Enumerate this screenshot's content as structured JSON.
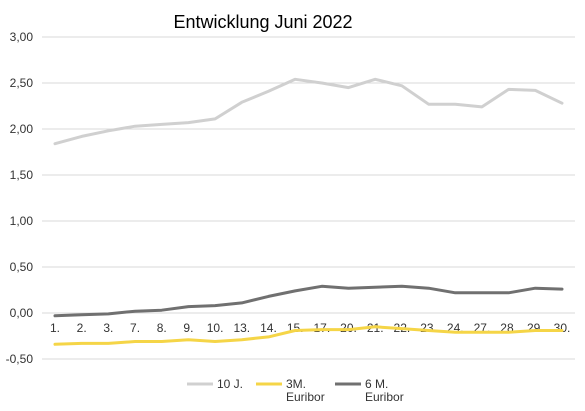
{
  "chart_data": {
    "type": "line",
    "title": "Entwicklung Juni 2022",
    "xlabel": "",
    "ylabel": "",
    "categories": [
      "1.",
      "2.",
      "3.",
      "7.",
      "8.",
      "9.",
      "10.",
      "13.",
      "14.",
      "15.",
      "17.",
      "20.",
      "21.",
      "22.",
      "23.",
      "24.",
      "27.",
      "28.",
      "29.",
      "30."
    ],
    "ylim": [
      -0.5,
      3.0
    ],
    "yticks": [
      "3,00",
      "2,50",
      "2,00",
      "1,50",
      "1,00",
      "0,50",
      "0,00",
      "-0,50"
    ],
    "grid": true,
    "legend_position": "bottom",
    "series": [
      {
        "name": "10 J.",
        "color": "#d0d0d0",
        "values": [
          1.84,
          1.92,
          1.98,
          2.03,
          2.05,
          2.07,
          2.11,
          2.29,
          2.41,
          2.54,
          2.5,
          2.45,
          2.54,
          2.47,
          2.27,
          2.27,
          2.24,
          2.43,
          2.42,
          2.28
        ]
      },
      {
        "name_lines": [
          "3M.",
          "Euribor"
        ],
        "color": "#f5d547",
        "values": [
          -0.34,
          -0.33,
          -0.33,
          -0.31,
          -0.31,
          -0.29,
          -0.31,
          -0.29,
          -0.26,
          -0.19,
          -0.18,
          -0.18,
          -0.15,
          -0.17,
          -0.19,
          -0.21,
          -0.21,
          -0.21,
          -0.19,
          -0.19
        ]
      },
      {
        "name_lines": [
          "6 M.",
          "Euribor"
        ],
        "color": "#707070",
        "values": [
          -0.03,
          -0.02,
          -0.01,
          0.02,
          0.03,
          0.07,
          0.08,
          0.11,
          0.18,
          0.24,
          0.29,
          0.27,
          0.28,
          0.29,
          0.27,
          0.22,
          0.22,
          0.22,
          0.27,
          0.26
        ]
      }
    ]
  }
}
